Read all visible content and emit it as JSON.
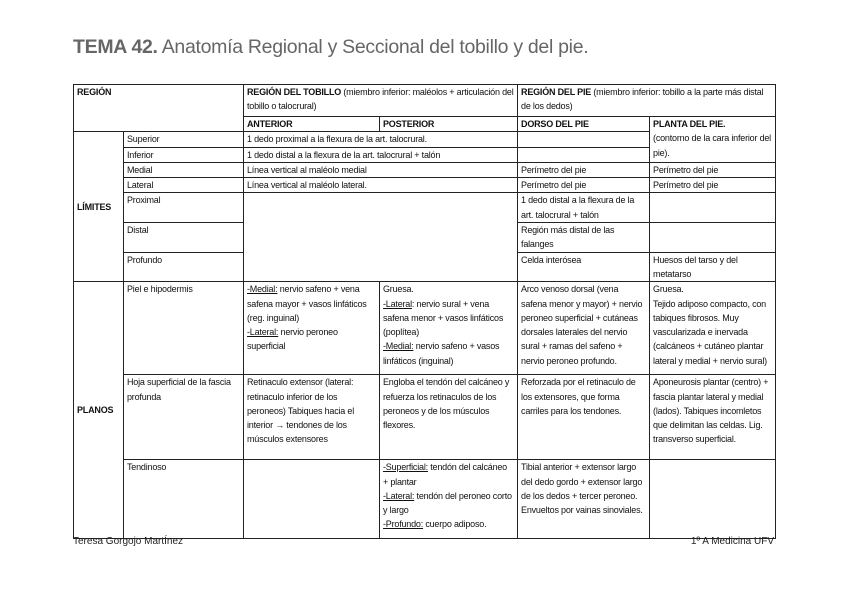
{
  "title": {
    "bold": "TEMA 42.",
    "rest": " Anatomía Regional y Seccional del tobillo y del pie."
  },
  "header": {
    "region": "REGIÓN",
    "tobillo_bold": "REGIÓN DEL TOBILLO",
    "tobillo_rest": " (miembro inferior: maléolos + articulación del tobillo o talocrural)",
    "pie_bold": "REGIÓN DEL PIE",
    "pie_rest": " (miembro inferior: tobillo a la parte más distal de los dedos)",
    "anterior": "ANTERIOR",
    "posterior": "POSTERIOR",
    "dorso": "DORSO DEL PIE",
    "planta_bold": "PLANTA DEL PIE.",
    "planta_rest": "(contorno de la cara inferior del pie)."
  },
  "limites": {
    "label": "LÍMITES",
    "superior": {
      "name": "Superior",
      "tobillo": "1 dedo proximal a la flexura de la art. talocrural.",
      "dorso": ""
    },
    "inferior": {
      "name": "Inferior",
      "tobillo": "1 dedo distal a la flexura de la art. talocrural + talón",
      "dorso": ""
    },
    "medial": {
      "name": "Medial",
      "tobillo": "Línea vertical al maléolo medial",
      "dorso": "Perímetro del pie",
      "planta": "Perímetro del pie"
    },
    "lateral": {
      "name": "Lateral",
      "tobillo": "Línea vertical al maléolo lateral.",
      "dorso": "Perímetro del pie",
      "planta": "Perímetro del pie"
    },
    "proximal": {
      "name": "Proximal",
      "dorso": "1 dedo distal a la flexura de la art. talocrural + talón",
      "planta": ""
    },
    "distal": {
      "name": "Distal",
      "dorso": "Región más distal de las falanges",
      "planta": ""
    },
    "profundo": {
      "name": "Profundo",
      "dorso": "Celda interósea",
      "planta": "Huesos del tarso y del metatarso"
    }
  },
  "planos": {
    "label": "PLANOS",
    "piel": {
      "name": "Piel e hipodermis",
      "anterior": [
        {
          "u": "-Medial:",
          "t": " nervio safeno + vena safena mayor + vasos linfáticos (reg. inguinal)"
        },
        {
          "u": "-Lateral:",
          "t": " nervio peroneo superficial"
        }
      ],
      "posterior_intro": "Gruesa.",
      "posterior": [
        {
          "u": "-Lateral",
          "t": ": nervio sural + vena safena menor + vasos linfáticos (poplítea)"
        },
        {
          "u": "-Medial:",
          "t": " nervio safeno + vasos linfáticos (inguinal)"
        }
      ],
      "dorso": "Arco venoso dorsal (vena safena menor y mayor) + nervio peroneo superficial + cutáneas dorsales laterales del nervio sural + ramas del safeno + nervio peroneo profundo.",
      "planta": "Gruesa.\nTejido adiposo compacto, con tabiques fibrosos. Muy vascularizada e inervada (calcáneos + cutáneo plantar lateral y medial + nervio sural)"
    },
    "hoja": {
      "name": "Hoja superficial de la fascia profunda",
      "anterior": "Retinaculo extensor (lateral: retinaculo inferior de los peroneos) Tabiques hacia el interior → tendones de los músculos extensores",
      "posterior": "Engloba el tendón del calcáneo y refuerza los retinaculos de los peroneos y de los músculos flexores.",
      "dorso": "Reforzada por el retinaculo de los extensores, que forma carriles para los tendones.",
      "planta": "Aponeurosis plantar (centro) + fascia plantar lateral y medial (lados). Tabiques incomletos que delimitan las celdas. Lig. transverso superficial."
    },
    "tendinoso": {
      "name": "Tendinoso",
      "anterior": "",
      "posterior": [
        {
          "u": "-Superficial:",
          "t": " tendón del calcáneo + plantar"
        },
        {
          "u": "-Lateral:",
          "t": " tendón del peroneo corto y largo"
        },
        {
          "u": "-Profundo:",
          "t": " cuerpo adiposo."
        }
      ],
      "dorso": "Tibial anterior + extensor largo del dedo gordo + extensor largo de los dedos + tercer peroneo. Envueltos por vainas sinoviales.",
      "planta": ""
    }
  },
  "footer": {
    "author": "Teresa Gorgojo MartÍnez",
    "course": "1º A Medicina UFV"
  }
}
